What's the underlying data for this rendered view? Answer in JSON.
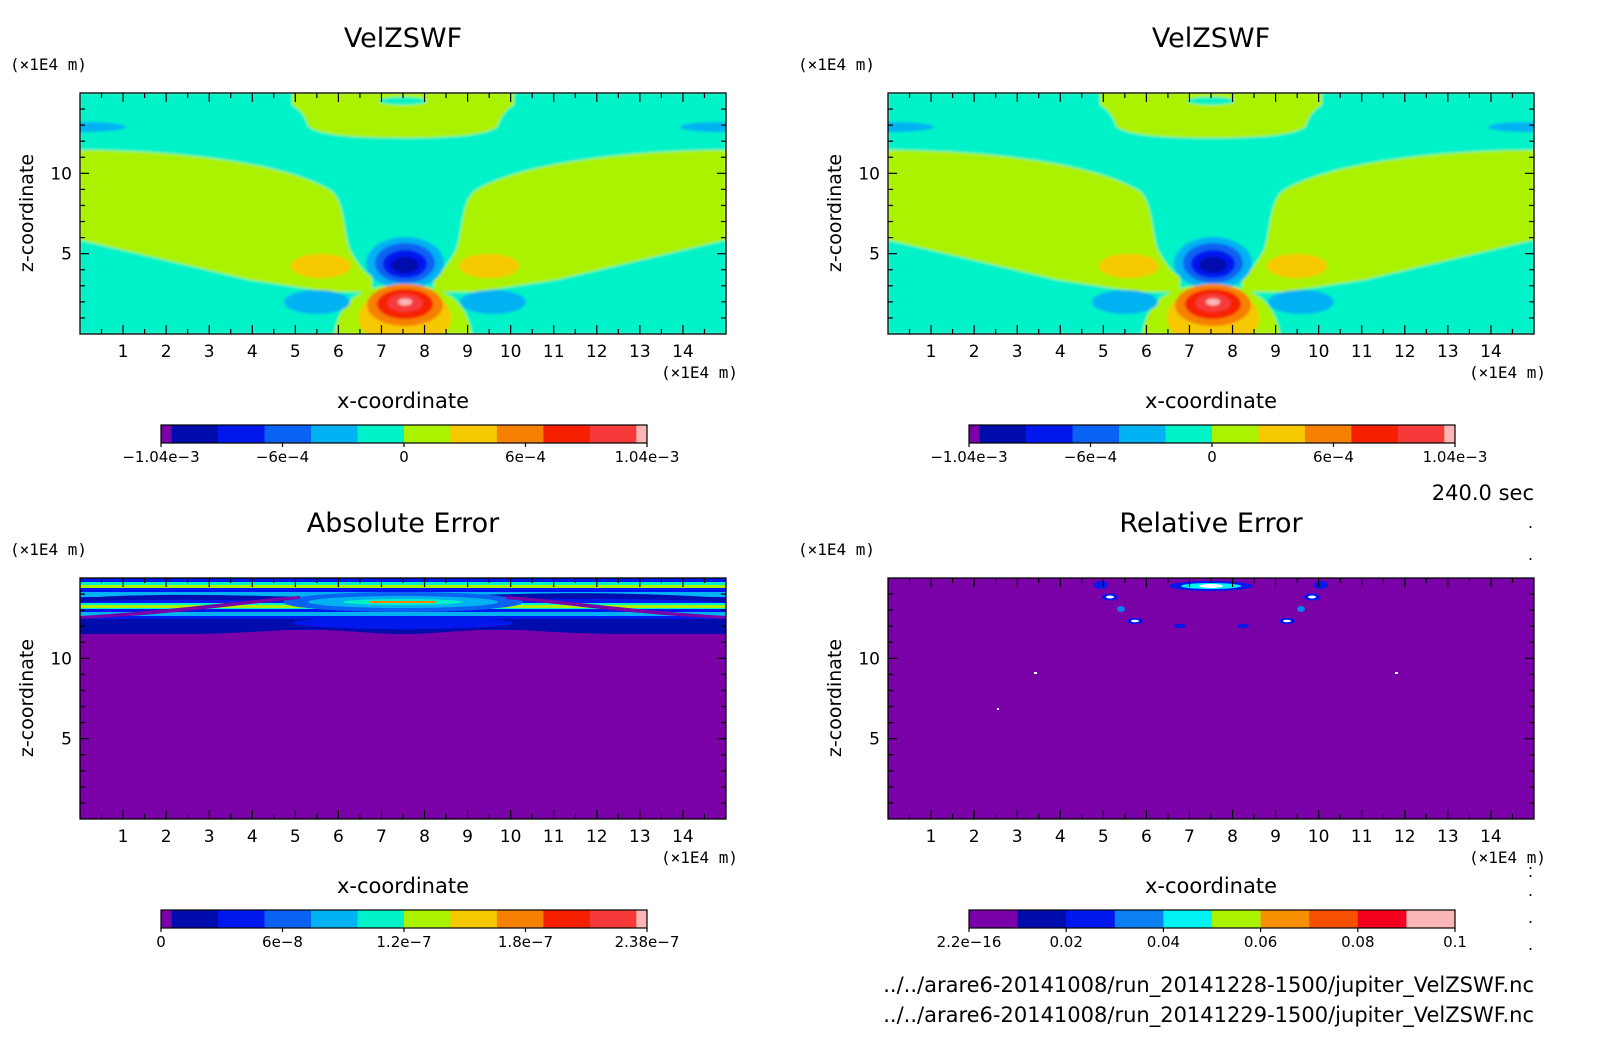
{
  "colors": {
    "velocity_levels": [
      "#7a00a8",
      "#000cac",
      "#0018ee",
      "#0a62f2",
      "#00b2f2",
      "#00f2c8",
      "#aaf200",
      "#f6c800",
      "#f68000",
      "#f62000",
      "#f63a3a",
      "#f8b6b6"
    ],
    "abs_levels": [
      "#7a00a8",
      "#000cac",
      "#0018ee",
      "#0a62f2",
      "#00b2f2",
      "#00f2c8",
      "#aaf200",
      "#f6c800",
      "#f68000",
      "#f62000",
      "#f63a3a",
      "#f8b6b6"
    ],
    "rel_levels": [
      "#7a00a8",
      "#000cac",
      "#0018ee",
      "#0a80f2",
      "#00f2f2",
      "#aaf200",
      "#f69000",
      "#f65000",
      "#f60020",
      "#f8b6b6"
    ]
  },
  "annotations": {
    "time_label": "240.0 sec",
    "file_1": "../../arare6-20141008/run_20141228-1500/jupiter_VelZSWF.nc",
    "file_2": "../../arare6-20141008/run_20141229-1500/jupiter_VelZSWF.nc",
    "dots": [
      ".",
      ".",
      ".",
      ".",
      ".",
      ".",
      "."
    ]
  },
  "chart_data": [
    {
      "type": "heatmap",
      "title": "VelZSWF",
      "xlabel": "x-coordinate",
      "ylabel": "z-coordinate",
      "x_unit": "(×1E4 m)",
      "y_unit": "(×1E4 m)",
      "xlim": [
        0,
        15
      ],
      "ylim": [
        0,
        15
      ],
      "xticks": [
        "1",
        "2",
        "3",
        "4",
        "5",
        "6",
        "7",
        "8",
        "9",
        "10",
        "11",
        "12",
        "13",
        "14"
      ],
      "yticks": [
        "5",
        "10"
      ],
      "colorbar_labels": [
        "−1.04e−3",
        "−6e−4",
        "0",
        "6e−4",
        "1.04e−3"
      ],
      "field": "vertical velocity of sound-wave field, max about 1.04e-3 at x=7.5, z=2.0 and min about -1.04e-3 at x=7.5, z=4.3"
    },
    {
      "type": "heatmap",
      "title": "VelZSWF",
      "xlabel": "x-coordinate",
      "ylabel": "z-coordinate",
      "x_unit": "(×1E4 m)",
      "y_unit": "(×1E4 m)",
      "xlim": [
        0,
        15
      ],
      "ylim": [
        0,
        15
      ],
      "xticks": [
        "1",
        "2",
        "3",
        "4",
        "5",
        "6",
        "7",
        "8",
        "9",
        "10",
        "11",
        "12",
        "13",
        "14"
      ],
      "yticks": [
        "5",
        "10"
      ],
      "colorbar_labels": [
        "−1.04e−3",
        "−6e−4",
        "0",
        "6e−4",
        "1.04e−3"
      ],
      "field": "same field as panel 1"
    },
    {
      "type": "heatmap",
      "title": "Absolute Error",
      "xlabel": "x-coordinate",
      "ylabel": "z-coordinate",
      "x_unit": "(×1E4 m)",
      "y_unit": "(×1E4 m)",
      "xlim": [
        0,
        15
      ],
      "ylim": [
        0,
        15
      ],
      "xticks": [
        "1",
        "2",
        "3",
        "4",
        "5",
        "6",
        "7",
        "8",
        "9",
        "10",
        "11",
        "12",
        "13",
        "14"
      ],
      "yticks": [
        "5",
        "10"
      ],
      "colorbar_labels": [
        "0",
        "6e−8",
        "1.2e−7",
        "1.8e−7",
        "2.38e−7"
      ],
      "field": "zero below z about 11.5, banded errors up to 2.38e-7 near the top z 12-15"
    },
    {
      "type": "heatmap",
      "title": "Relative Error",
      "xlabel": "x-coordinate",
      "ylabel": "z-coordinate",
      "x_unit": "(×1E4 m)",
      "y_unit": "(×1E4 m)",
      "xlim": [
        0,
        15
      ],
      "ylim": [
        0,
        15
      ],
      "xticks": [
        "1",
        "2",
        "3",
        "4",
        "5",
        "6",
        "7",
        "8",
        "9",
        "10",
        "11",
        "12",
        "13",
        "14"
      ],
      "yticks": [
        "5",
        "10"
      ],
      "colorbar_labels": [
        "2.2e−16",
        "0.02",
        "0.04",
        "0.06",
        "0.08",
        "0.1"
      ],
      "field": "near 2.2e-16 almost everywhere, small spots up to 0.1 along an arc near the top"
    }
  ]
}
